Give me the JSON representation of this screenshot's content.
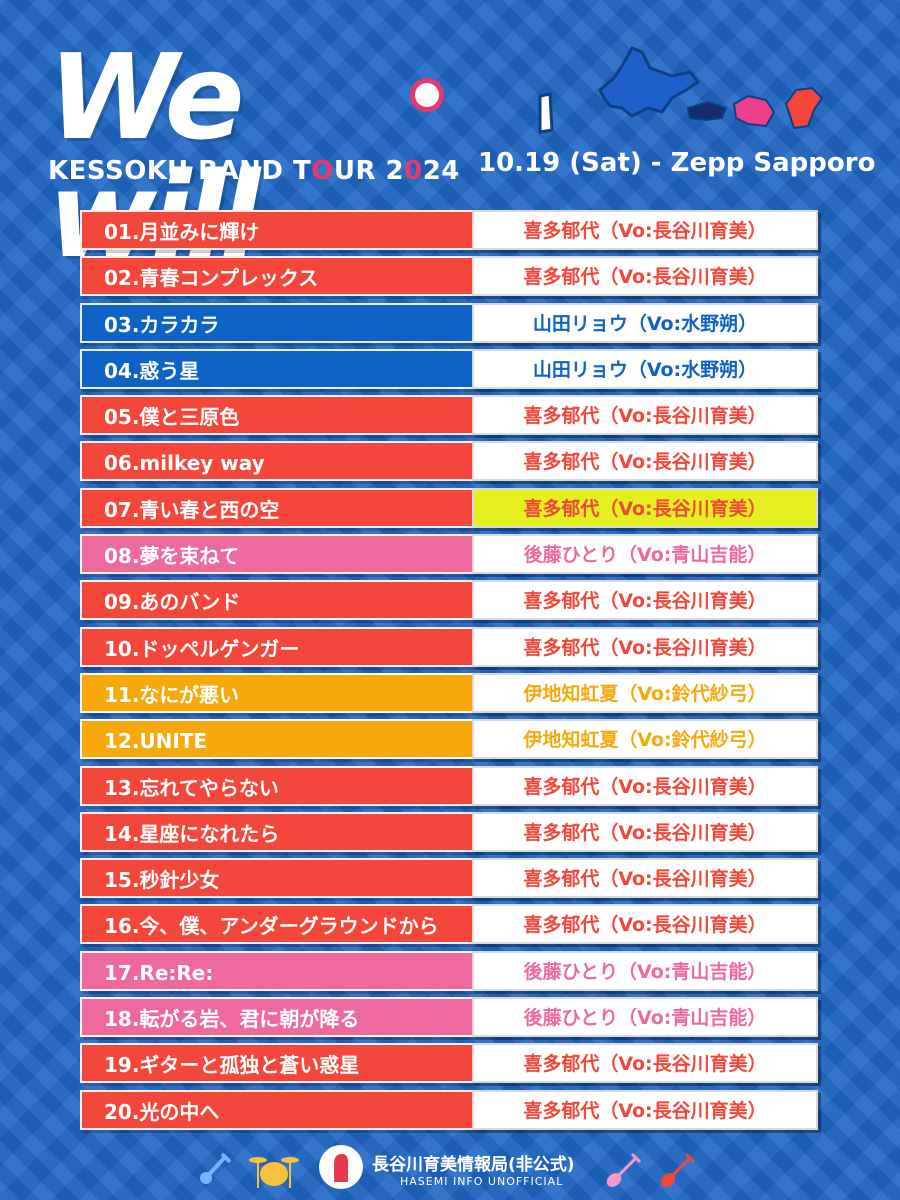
{
  "header": {
    "logo_word": "We will",
    "tour_pre": "KESSOKU BAND T",
    "tour_o": "O",
    "tour_mid": "UR 2",
    "tour_o2": "0",
    "tour_post": "24",
    "event": "10.19 (Sat) - Zepp Sapporo"
  },
  "colors": {
    "kita": "#f2473a",
    "ryo": "#0e63c6",
    "bocchi": "#ee6a9e",
    "nijika": "#f7a90c",
    "highlight": "#e4f01f",
    "background": "#1f67c6"
  },
  "setlist": [
    {
      "song": "01.月並みに輝け",
      "artist": "喜多郁代（Vo:長谷川育美）",
      "group": "kita"
    },
    {
      "song": "02.青春コンプレックス",
      "artist": "喜多郁代（Vo:長谷川育美）",
      "group": "kita"
    },
    {
      "song": "03.カラカラ",
      "artist": "山田リョウ（Vo:水野朔）",
      "group": "ryo"
    },
    {
      "song": "04.惑う星",
      "artist": "山田リョウ（Vo:水野朔）",
      "group": "ryo"
    },
    {
      "song": "05.僕と三原色",
      "artist": "喜多郁代（Vo:長谷川育美）",
      "group": "kita"
    },
    {
      "song": "06.milkey way",
      "artist": "喜多郁代（Vo:長谷川育美）",
      "group": "kita"
    },
    {
      "song": "07.青い春と西の空",
      "artist": "喜多郁代（Vo:長谷川育美）",
      "group": "kita",
      "highlight": true
    },
    {
      "song": "08.夢を束ねて",
      "artist": "後藤ひとり（Vo:青山吉能）",
      "group": "bocchi"
    },
    {
      "song": "09.あのバンド",
      "artist": "喜多郁代（Vo:長谷川育美）",
      "group": "kita"
    },
    {
      "song": "10.ドッペルゲンガー",
      "artist": "喜多郁代（Vo:長谷川育美）",
      "group": "kita"
    },
    {
      "song": "11.なにが悪い",
      "artist": "伊地知虹夏（Vo:鈴代紗弓）",
      "group": "nijika"
    },
    {
      "song": "12.UNITE",
      "artist": "伊地知虹夏（Vo:鈴代紗弓）",
      "group": "nijika"
    },
    {
      "song": "13.忘れてやらない",
      "artist": "喜多郁代（Vo:長谷川育美）",
      "group": "kita"
    },
    {
      "song": "14.星座になれたら",
      "artist": "喜多郁代（Vo:長谷川育美）",
      "group": "kita"
    },
    {
      "song": "15.秒針少女",
      "artist": "喜多郁代（Vo:長谷川育美）",
      "group": "kita"
    },
    {
      "song": "16.今、僕、アンダーグラウンドから",
      "artist": "喜多郁代（Vo:長谷川育美）",
      "group": "kita"
    },
    {
      "song": "17.Re:Re:",
      "artist": "後藤ひとり（Vo:青山吉能）",
      "group": "bocchi"
    },
    {
      "song": "18.転がる岩、君に朝が降る",
      "artist": "後藤ひとり（Vo:青山吉能）",
      "group": "bocchi"
    },
    {
      "song": "19.ギターと孤独と蒼い惑星",
      "artist": "喜多郁代（Vo:長谷川育美）",
      "group": "kita"
    },
    {
      "song": "20.光の中へ",
      "artist": "喜多郁代（Vo:長谷川育美）",
      "group": "kita"
    }
  ],
  "footer": {
    "credit_title": "長谷川育美情報局(非公式)",
    "credit_sub": "HASEMI INFO UNOFFICIAL",
    "icons": [
      "bass-icon",
      "drums-icon",
      "hasemi-logo-icon",
      "guitar-icon",
      "guitar-icon"
    ]
  }
}
